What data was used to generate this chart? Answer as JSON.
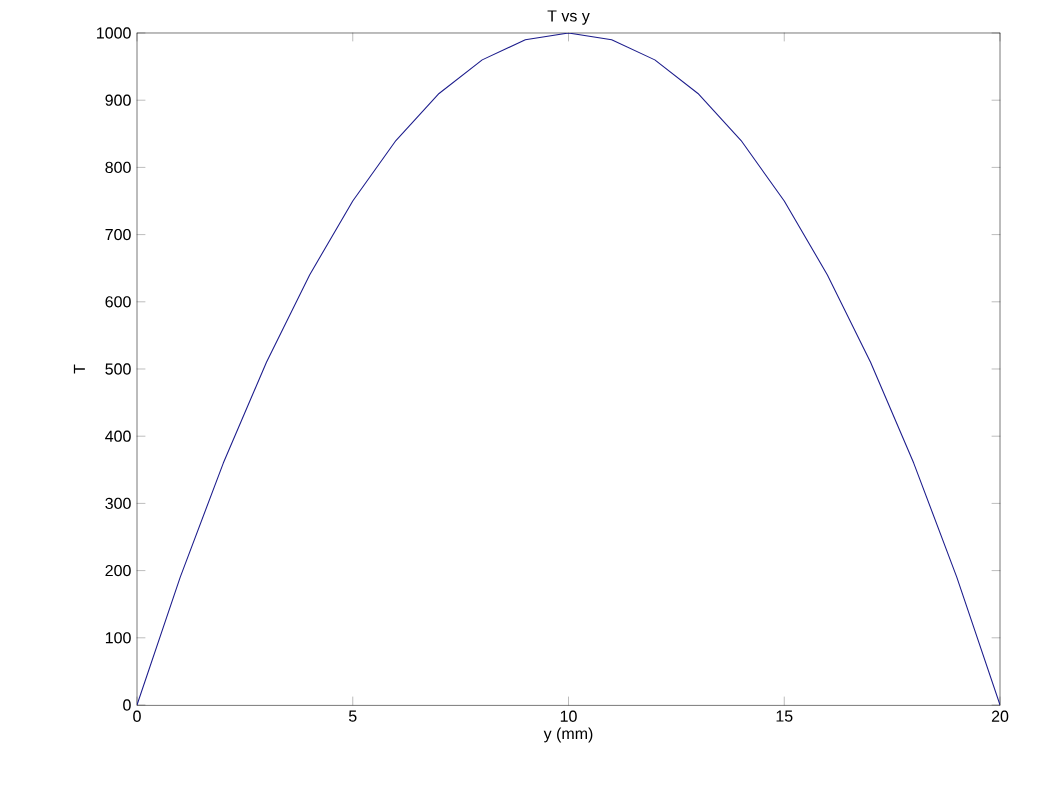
{
  "chart_data": {
    "type": "line",
    "title": "T vs y",
    "xlabel": "y (mm)",
    "ylabel": "T",
    "x": [
      0,
      1,
      2,
      3,
      4,
      5,
      6,
      7,
      8,
      9,
      10,
      11,
      12,
      13,
      14,
      15,
      16,
      17,
      18,
      19,
      20
    ],
    "series": [
      {
        "color": "#1c1c8c",
        "values": [
          0,
          190,
          360,
          510,
          640,
          750,
          840,
          910,
          960,
          990,
          1000,
          990,
          960,
          910,
          840,
          750,
          640,
          510,
          360,
          190,
          0
        ]
      }
    ],
    "xlim": [
      0,
      20
    ],
    "ylim": [
      0,
      1000
    ],
    "xticks": [
      0,
      5,
      10,
      15,
      20
    ],
    "yticks": [
      0,
      100,
      200,
      300,
      400,
      500,
      600,
      700,
      800,
      900,
      1000
    ],
    "marker": "none",
    "line_style": "solid"
  }
}
